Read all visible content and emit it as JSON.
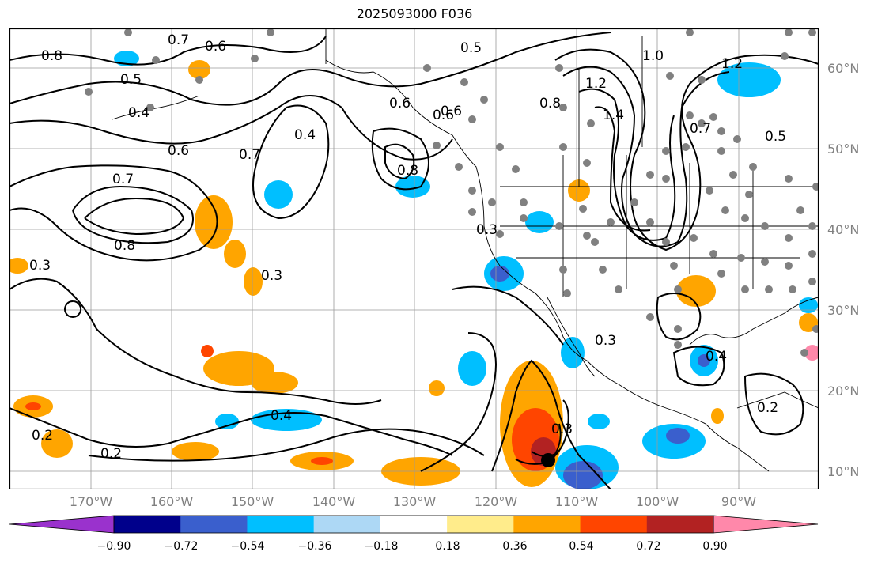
{
  "title": "2025093000 F036",
  "lat_labels": [
    "60°N",
    "50°N",
    "40°N",
    "30°N",
    "20°N",
    "10°N"
  ],
  "lon_labels": [
    "170°W",
    "160°W",
    "150°W",
    "140°W",
    "130°W",
    "120°W",
    "110°W",
    "100°W",
    "90°W"
  ],
  "contour_labels": [
    "0.8",
    "0.7",
    "0.6",
    "0.5",
    "0.6",
    "0.4",
    "0.6",
    "0.7",
    "0.8",
    "0.6",
    "0.8",
    "1.2",
    "1.4",
    "1.0",
    "1.2",
    "0.5",
    "0.7",
    "0.8",
    "0.3",
    "0.3",
    "0.3",
    "0.4",
    "0.3",
    "0.2",
    "0.2",
    "0.4",
    "0.2",
    "0.3",
    "0.5",
    "0.7",
    "0.4",
    "0.6"
  ],
  "colorbar": {
    "ticks": [
      "−0.90",
      "−0.72",
      "−0.54",
      "−0.36",
      "−0.18",
      "0.18",
      "0.36",
      "0.54",
      "0.72",
      "0.90"
    ],
    "colors": [
      "#9a32cd",
      "#00008b",
      "#3a5fcd",
      "#00bfff",
      "#add8f5",
      "#ffffff",
      "#ffec8b",
      "#ffa500",
      "#ff4500",
      "#b22222",
      "#ff88aa"
    ]
  },
  "legend_colors": {
    "neg_strong": "#3a5fcd",
    "neg": "#00bfff",
    "pos": "#ffa500",
    "pos_strong": "#ff4500",
    "pos_max": "#b22222",
    "dots": "#808080"
  }
}
